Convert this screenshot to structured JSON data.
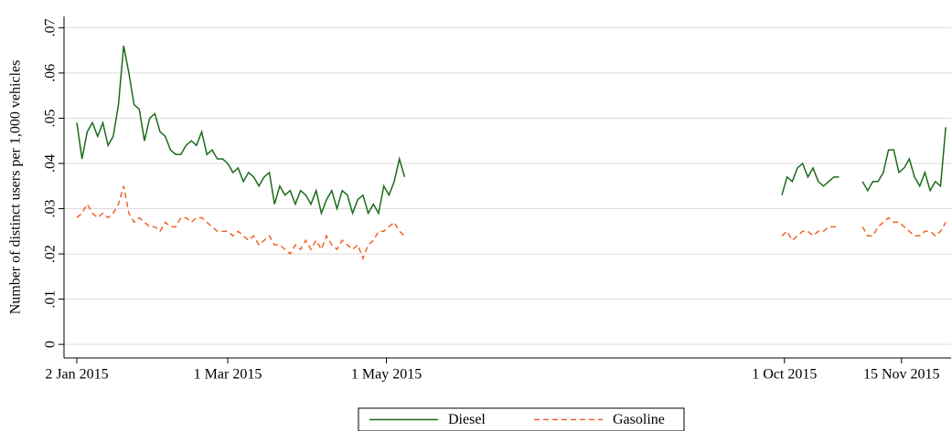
{
  "chart_data": {
    "type": "line",
    "ylabel": "Number of distinct users per 1,000 vehicles",
    "x": [
      "2015-01-02",
      "2015-01-04",
      "2015-01-06",
      "2015-01-08",
      "2015-01-10",
      "2015-01-12",
      "2015-01-14",
      "2015-01-16",
      "2015-01-18",
      "2015-01-20",
      "2015-01-22",
      "2015-01-24",
      "2015-01-26",
      "2015-01-28",
      "2015-01-30",
      "2015-02-01",
      "2015-02-03",
      "2015-02-05",
      "2015-02-07",
      "2015-02-09",
      "2015-02-11",
      "2015-02-13",
      "2015-02-15",
      "2015-02-17",
      "2015-02-19",
      "2015-02-21",
      "2015-02-23",
      "2015-02-25",
      "2015-02-27",
      "2015-03-01",
      "2015-03-03",
      "2015-03-05",
      "2015-03-07",
      "2015-03-09",
      "2015-03-11",
      "2015-03-13",
      "2015-03-15",
      "2015-03-17",
      "2015-03-19",
      "2015-03-21",
      "2015-03-23",
      "2015-03-25",
      "2015-03-27",
      "2015-03-29",
      "2015-03-31",
      "2015-04-02",
      "2015-04-04",
      "2015-04-06",
      "2015-04-08",
      "2015-04-10",
      "2015-04-12",
      "2015-04-14",
      "2015-04-16",
      "2015-04-18",
      "2015-04-20",
      "2015-04-22",
      "2015-04-24",
      "2015-04-26",
      "2015-04-28",
      "2015-04-30",
      "2015-05-02",
      "2015-05-04",
      "2015-05-06",
      "2015-05-08",
      "2015-05-10",
      "2015-09-30",
      "2015-10-02",
      "2015-10-04",
      "2015-10-06",
      "2015-10-08",
      "2015-10-10",
      "2015-10-12",
      "2015-10-14",
      "2015-10-16",
      "2015-10-18",
      "2015-10-20",
      "2015-10-22",
      "2015-10-26",
      "2015-10-31",
      "2015-11-02",
      "2015-11-04",
      "2015-11-06",
      "2015-11-08",
      "2015-11-10",
      "2015-11-12",
      "2015-11-14",
      "2015-11-16",
      "2015-11-18",
      "2015-11-20",
      "2015-11-22",
      "2015-11-24",
      "2015-11-26",
      "2015-11-28",
      "2015-11-30",
      "2015-12-02"
    ],
    "series": [
      {
        "name": "Diesel",
        "color": "#1a6b1a",
        "line_style": "solid",
        "values": [
          0.049,
          0.041,
          0.047,
          0.049,
          0.046,
          0.049,
          0.044,
          0.046,
          0.053,
          0.066,
          0.06,
          0.053,
          0.052,
          0.045,
          0.05,
          0.051,
          0.047,
          0.046,
          0.043,
          0.042,
          0.042,
          0.044,
          0.045,
          0.044,
          0.047,
          0.042,
          0.043,
          0.041,
          0.041,
          0.04,
          0.038,
          0.039,
          0.036,
          0.038,
          0.037,
          0.035,
          0.037,
          0.038,
          0.031,
          0.035,
          0.033,
          0.034,
          0.031,
          0.034,
          0.033,
          0.031,
          0.034,
          0.029,
          0.032,
          0.034,
          0.03,
          0.034,
          0.033,
          0.029,
          0.032,
          0.033,
          0.029,
          0.031,
          0.029,
          0.035,
          0.033,
          0.036,
          0.041,
          0.037,
          null,
          0.033,
          0.037,
          0.036,
          0.039,
          0.04,
          0.037,
          0.039,
          0.036,
          0.035,
          0.036,
          0.037,
          0.037,
          null,
          0.036,
          0.034,
          0.036,
          0.036,
          0.038,
          0.043,
          0.043,
          0.038,
          0.039,
          0.041,
          0.037,
          0.035,
          0.038,
          0.034,
          0.036,
          0.035,
          0.048
        ]
      },
      {
        "name": "Gasoline",
        "color": "#f0642a",
        "line_style": "dashed",
        "values": [
          0.028,
          0.029,
          0.031,
          0.029,
          0.028,
          0.029,
          0.028,
          0.029,
          0.031,
          0.035,
          0.029,
          0.027,
          0.028,
          0.027,
          0.026,
          0.026,
          0.025,
          0.027,
          0.026,
          0.026,
          0.028,
          0.028,
          0.027,
          0.028,
          0.028,
          0.027,
          0.026,
          0.025,
          0.025,
          0.025,
          0.024,
          0.025,
          0.024,
          0.023,
          0.024,
          0.022,
          0.023,
          0.024,
          0.022,
          0.022,
          0.021,
          0.02,
          0.022,
          0.021,
          0.023,
          0.021,
          0.023,
          0.021,
          0.024,
          0.022,
          0.021,
          0.023,
          0.022,
          0.021,
          0.022,
          0.019,
          0.022,
          0.023,
          0.025,
          0.025,
          0.026,
          0.027,
          0.025,
          0.024,
          null,
          0.024,
          0.025,
          0.023,
          0.024,
          0.025,
          0.025,
          0.024,
          0.025,
          0.025,
          0.026,
          0.026,
          0.026,
          null,
          0.026,
          0.024,
          0.024,
          0.026,
          0.027,
          0.028,
          0.027,
          0.027,
          0.026,
          0.025,
          0.024,
          0.024,
          0.025,
          0.025,
          0.024,
          0.025,
          0.027
        ]
      }
    ],
    "xlim": [
      "2015-01-02",
      "2015-12-03"
    ],
    "xticks": [
      {
        "value": "2015-01-02",
        "label": "2 Jan 2015"
      },
      {
        "value": "2015-03-01",
        "label": "1 Mar 2015"
      },
      {
        "value": "2015-05-01",
        "label": "1 May 2015"
      },
      {
        "value": "2015-10-01",
        "label": "1 Oct 2015"
      },
      {
        "value": "2015-11-15",
        "label": "15 Nov 2015"
      }
    ],
    "ylim": [
      -0.003,
      0.0725
    ],
    "yticks": [
      0,
      {
        "value": 0.01,
        "label": ".01"
      },
      {
        "value": 0.02,
        "label": ".02"
      },
      {
        "value": 0.03,
        "label": ".03"
      },
      {
        "value": 0.04,
        "label": ".04"
      },
      {
        "value": 0.05,
        "label": ".05"
      },
      {
        "value": 0.06,
        "label": ".06"
      },
      {
        "value": 0.07,
        "label": ".07"
      }
    ],
    "grid": true,
    "legend": "bottom"
  }
}
